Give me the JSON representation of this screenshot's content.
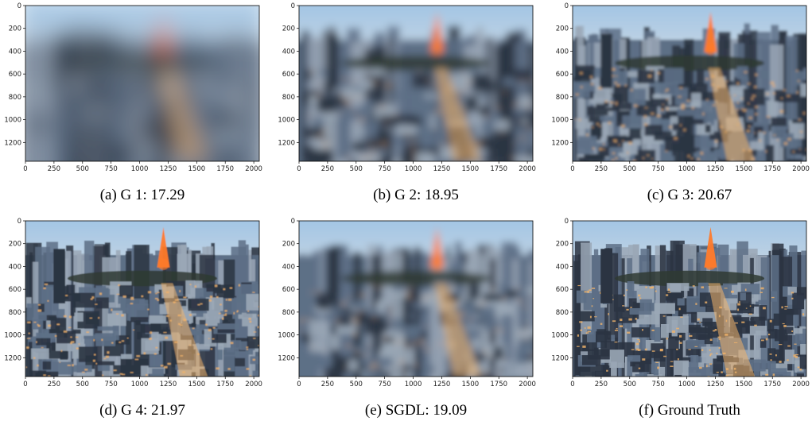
{
  "figure": {
    "panels": [
      {
        "id": "a",
        "caption": "(a) G 1: 17.29",
        "blur": 14,
        "detail": 0.25
      },
      {
        "id": "b",
        "caption": "(b) G 2: 18.95",
        "blur": 5,
        "detail": 0.55
      },
      {
        "id": "c",
        "caption": "(c) G 3: 20.67",
        "blur": 1.6,
        "detail": 0.85
      },
      {
        "id": "d",
        "caption": "(d) G 4: 21.97",
        "blur": 0.6,
        "detail": 1.0
      },
      {
        "id": "e",
        "caption": "(e) SGDL: 19.09",
        "blur": 4.5,
        "detail": 0.55
      },
      {
        "id": "f",
        "caption": "(f) Ground Truth",
        "blur": 0,
        "detail": 1.0
      }
    ],
    "x_ticks": [
      "0",
      "250",
      "500",
      "750",
      "1000",
      "1250",
      "1500",
      "1750",
      "2000"
    ],
    "y_ticks": [
      "0",
      "200",
      "400",
      "600",
      "800",
      "1000",
      "1200"
    ]
  },
  "colors": {
    "sky_top": "#9ec3e4",
    "sky_horizon": "#c9d7e3",
    "city_dark": "#2b3442",
    "city_mid": "#5d6f86",
    "city_light": "#9aa7b6",
    "lights": "#f0b36a",
    "tower": "#ff7a2a",
    "park": "#2f3a33"
  }
}
